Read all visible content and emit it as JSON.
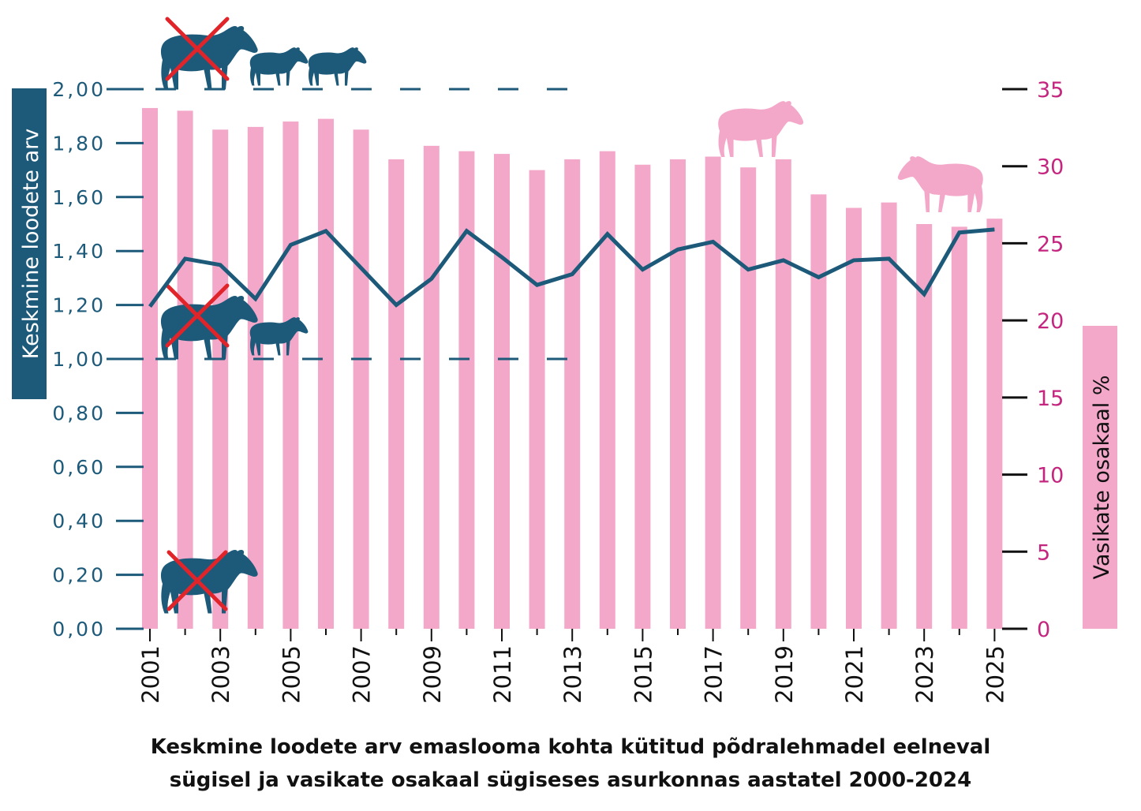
{
  "colors": {
    "bars": "#f3a8ca",
    "line": "#1d5a7a",
    "left_axis": "#1d5a7a",
    "right_axis": "#c4267f",
    "left_label_bg": "#1d5a7a",
    "right_label_bg": "#f3a8ca",
    "cross": "#e0242a"
  },
  "icons": {
    "moose_cow_crossed_two_calves": "moose-cow-with-two-calves-icon",
    "moose_cow_crossed_one_calf": "moose-cow-with-one-calf-icon",
    "moose_cow_crossed_alone": "moose-cow-without-calf-icon",
    "calf_standing": "moose-calf-icon",
    "calf_grazing": "moose-calf-grazing-icon"
  },
  "caption": {
    "line1": "Keskmine loodete arv emaslooma kohta kütitud põdralehmadel eelneval",
    "line2": "sügisel ja vasikate osakaal sügiseses asurkonnas aastatel 2000-2024"
  },
  "chart_data": {
    "type": "bar",
    "x": [
      2001,
      2002,
      2003,
      2004,
      2005,
      2006,
      2007,
      2008,
      2009,
      2010,
      2011,
      2012,
      2013,
      2014,
      2015,
      2016,
      2017,
      2018,
      2019,
      2020,
      2021,
      2022,
      2023,
      2024,
      2025
    ],
    "x_tick_labels": [
      "2001",
      "2003",
      "2005",
      "2007",
      "2009",
      "2011",
      "2013",
      "2015",
      "2017",
      "2019",
      "2021",
      "2023",
      "2025"
    ],
    "ylabel": "Keskmine loodete arv",
    "y2label": "Vasikate osakaal %",
    "ylim": [
      0,
      2
    ],
    "y2lim": [
      0,
      35
    ],
    "y_tick_labels": [
      "0,00",
      "0,20",
      "0,40",
      "0,60",
      "0,80",
      "1,00",
      "1,20",
      "1,40",
      "1,60",
      "1,80",
      "2,00"
    ],
    "y2_tick_labels": [
      "0",
      "5",
      "10",
      "15",
      "20",
      "25",
      "30",
      "35"
    ],
    "reference_lines": [
      1.0,
      2.0
    ],
    "series": [
      {
        "type": "bar",
        "axis": "left",
        "values": [
          1.93,
          1.92,
          1.85,
          1.86,
          1.88,
          1.89,
          1.85,
          1.74,
          1.79,
          1.77,
          1.76,
          1.7,
          1.74,
          1.77,
          1.72,
          1.74,
          1.75,
          1.71,
          1.74,
          1.61,
          1.56,
          1.58,
          1.5,
          1.49,
          1.52
        ]
      },
      {
        "type": "line",
        "axis": "right",
        "values": [
          20.9,
          24.0,
          23.6,
          21.4,
          24.9,
          25.8,
          23.4,
          21.0,
          22.7,
          25.8,
          24.1,
          22.3,
          23.0,
          25.6,
          23.3,
          24.6,
          25.1,
          23.3,
          23.9,
          22.8,
          23.9,
          24.0,
          21.7,
          25.7,
          25.9
        ]
      }
    ]
  }
}
